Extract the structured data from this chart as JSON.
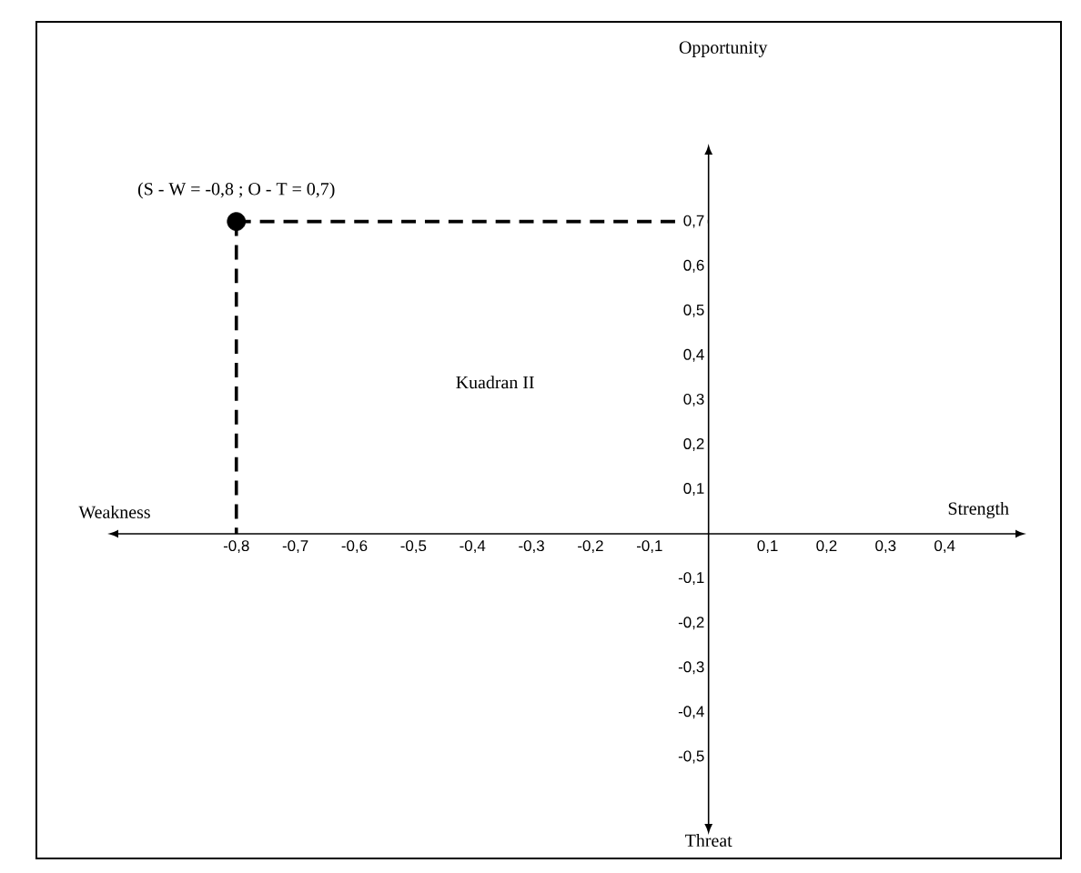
{
  "chart_data": {
    "type": "scatter",
    "xlabel": "Strength",
    "xlim": [
      -1.0,
      0.52
    ],
    "ylim": [
      -0.65,
      0.85
    ],
    "xticks": [
      {
        "value": -0.8,
        "label": "-0,8"
      },
      {
        "value": -0.7,
        "label": "-0,7"
      },
      {
        "value": -0.6,
        "label": "-0,6"
      },
      {
        "value": -0.5,
        "label": "-0,5"
      },
      {
        "value": -0.4,
        "label": "-0,4"
      },
      {
        "value": -0.3,
        "label": "-0,3"
      },
      {
        "value": -0.2,
        "label": "-0,2"
      },
      {
        "value": -0.1,
        "label": "-0,1"
      },
      {
        "value": 0.1,
        "label": "0,1"
      },
      {
        "value": 0.2,
        "label": "0,2"
      },
      {
        "value": 0.3,
        "label": "0,3"
      },
      {
        "value": 0.4,
        "label": "0,4"
      }
    ],
    "yticks": [
      {
        "value": -0.5,
        "label": "-0,5"
      },
      {
        "value": -0.4,
        "label": "-0,4"
      },
      {
        "value": -0.3,
        "label": "-0,3"
      },
      {
        "value": -0.2,
        "label": "-0,2"
      },
      {
        "value": -0.1,
        "label": "-0,1"
      },
      {
        "value": 0.1,
        "label": "0,1"
      },
      {
        "value": 0.2,
        "label": "0,2"
      },
      {
        "value": 0.3,
        "label": "0,3"
      },
      {
        "value": 0.4,
        "label": "0,4"
      },
      {
        "value": 0.5,
        "label": "0,5"
      },
      {
        "value": 0.6,
        "label": "0,6"
      },
      {
        "value": 0.7,
        "label": "0,7"
      }
    ],
    "series": [
      {
        "color": "#000000",
        "marker": "circle",
        "x": [
          -0.8
        ],
        "values": [
          0.7
        ],
        "errors": [
          [
            0,
            0.7
          ]
        ],
        "xerrors": [
          [
            -0.8,
            0
          ]
        ]
      }
    ],
    "annotations": [
      "Weakness",
      "Threat",
      "Kuadran II",
      "Opportunity",
      {
        "text": "(S - W = -0,8 ; O - T =  0,7)",
        "x": -0.8,
        "y": 0.7
      }
    ]
  }
}
